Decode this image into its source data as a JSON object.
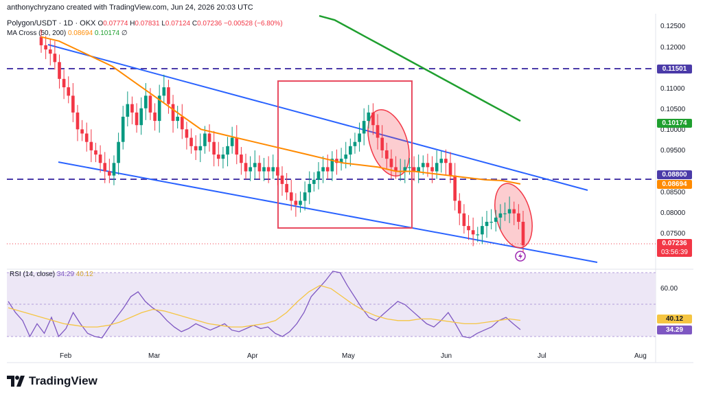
{
  "header": {
    "attribution": "anthonychryzano created with TradingView.com, Jun 24, 2026 20:03 UTC",
    "symbol": "Polygon/USDT · 1D · OKX",
    "o_label": "O",
    "o_value": "0.07774",
    "h_label": "H",
    "h_value": "0.07831",
    "l_label": "L",
    "l_value": "0.07124",
    "c_label": "C",
    "c_value": "0.07236",
    "change": "−0.00528 (−6.80%)",
    "ma_label": "MA Cross (50, 200)",
    "ma50_value": "0.08694",
    "ma200_value": "0.10174",
    "ma_extra": "∅"
  },
  "price_badges": {
    "level_high": "0.11501",
    "ma200": "0.10174",
    "level_mid": "0.08800",
    "ma50": "0.08694",
    "last_price": "0.07236",
    "countdown": "03:56:39"
  },
  "rsi": {
    "label": "RSI (14, close)",
    "rsi_value": "34.29",
    "ma_value": "40.12",
    "level_label": "60.00",
    "badge_ma": "40.12",
    "badge_rsi": "34.29"
  },
  "brand": {
    "name": "TradingView"
  },
  "colors": {
    "up": "#089981",
    "down": "#f23645",
    "ma50": "#ff8a00",
    "ma200": "#1f9f2f",
    "channel": "#2962ff",
    "level": "#4a3aa8",
    "box": "#e84a5f",
    "rsi": "#7e57c2",
    "rsi_ma": "#f5c542"
  },
  "chart_data": {
    "type": "candlestick",
    "x_ticks": [
      "Feb",
      "Mar",
      "Apr",
      "May",
      "Jun",
      "Jul",
      "Aug"
    ],
    "y_ticks": [
      "0.12500",
      "0.12000",
      "0.11000",
      "0.10500",
      "0.10000",
      "0.09500",
      "0.08500",
      "0.08000",
      "0.07500"
    ],
    "y_range": [
      0.0695,
      0.1275
    ],
    "horizontal_levels": [
      0.11501,
      0.088
    ],
    "last_price": 0.07236,
    "close_series": [
      0.12,
      0.119,
      0.118,
      0.116,
      0.112,
      0.11,
      0.108,
      0.104,
      0.1,
      0.099,
      0.097,
      0.095,
      0.094,
      0.092,
      0.09,
      0.089,
      0.092,
      0.097,
      0.103,
      0.106,
      0.104,
      0.101,
      0.105,
      0.108,
      0.104,
      0.102,
      0.108,
      0.11,
      0.106,
      0.102,
      0.103,
      0.1,
      0.098,
      0.096,
      0.095,
      0.096,
      0.099,
      0.097,
      0.094,
      0.093,
      0.094,
      0.096,
      0.098,
      0.094,
      0.092,
      0.09,
      0.091,
      0.092,
      0.09,
      0.091,
      0.09,
      0.091,
      0.089,
      0.087,
      0.085,
      0.083,
      0.082,
      0.083,
      0.085,
      0.087,
      0.088,
      0.09,
      0.091,
      0.09,
      0.093,
      0.092,
      0.093,
      0.094,
      0.096,
      0.097,
      0.099,
      0.102,
      0.104,
      0.101,
      0.098,
      0.095,
      0.093,
      0.091,
      0.09,
      0.09,
      0.091,
      0.091,
      0.09,
      0.091,
      0.092,
      0.091,
      0.09,
      0.092,
      0.093,
      0.092,
      0.089,
      0.083,
      0.08,
      0.077,
      0.076,
      0.075,
      0.075,
      0.077,
      0.078,
      0.078,
      0.079,
      0.08,
      0.08,
      0.081,
      0.08,
      0.078,
      0.0724
    ],
    "ma50_series": [
      0.122,
      0.121,
      0.119,
      0.117,
      0.115,
      0.112,
      0.109,
      0.106,
      0.103,
      0.1,
      0.099,
      0.098,
      0.097,
      0.096,
      0.095,
      0.094,
      0.093,
      0.092,
      0.0915,
      0.091,
      0.09,
      0.09,
      0.0895,
      0.089,
      0.0885,
      0.088,
      0.0878,
      0.087
    ],
    "ma200_series": [
      0.127,
      0.126,
      0.124,
      0.122,
      0.12,
      0.118,
      0.116,
      0.114,
      0.112,
      0.11,
      0.108,
      0.106,
      0.104,
      0.102
    ],
    "rsi_series": [
      52,
      45,
      40,
      30,
      38,
      32,
      42,
      30,
      35,
      45,
      38,
      32,
      30,
      28,
      36,
      42,
      48,
      55,
      58,
      52,
      48,
      45,
      40,
      36,
      33,
      35,
      38,
      36,
      34,
      36,
      38,
      34,
      33,
      35,
      37,
      35,
      36,
      32,
      30,
      33,
      38,
      45,
      55,
      60,
      65,
      72,
      70,
      62,
      55,
      48,
      42,
      40,
      44,
      48,
      52,
      50,
      46,
      42,
      38,
      36,
      40,
      45,
      38,
      30,
      28,
      32,
      34,
      36,
      40,
      42,
      38,
      34.29
    ],
    "rsi_ma_series": [
      48,
      46,
      44,
      42,
      40,
      38,
      37,
      36,
      36,
      37,
      39,
      42,
      45,
      47,
      46,
      44,
      42,
      40,
      38,
      37,
      36,
      36,
      37,
      38,
      40,
      45,
      52,
      58,
      62,
      60,
      55,
      50,
      46,
      43,
      41,
      40,
      40,
      41,
      41,
      40,
      39,
      38,
      38,
      39,
      40,
      41,
      40.12
    ]
  }
}
